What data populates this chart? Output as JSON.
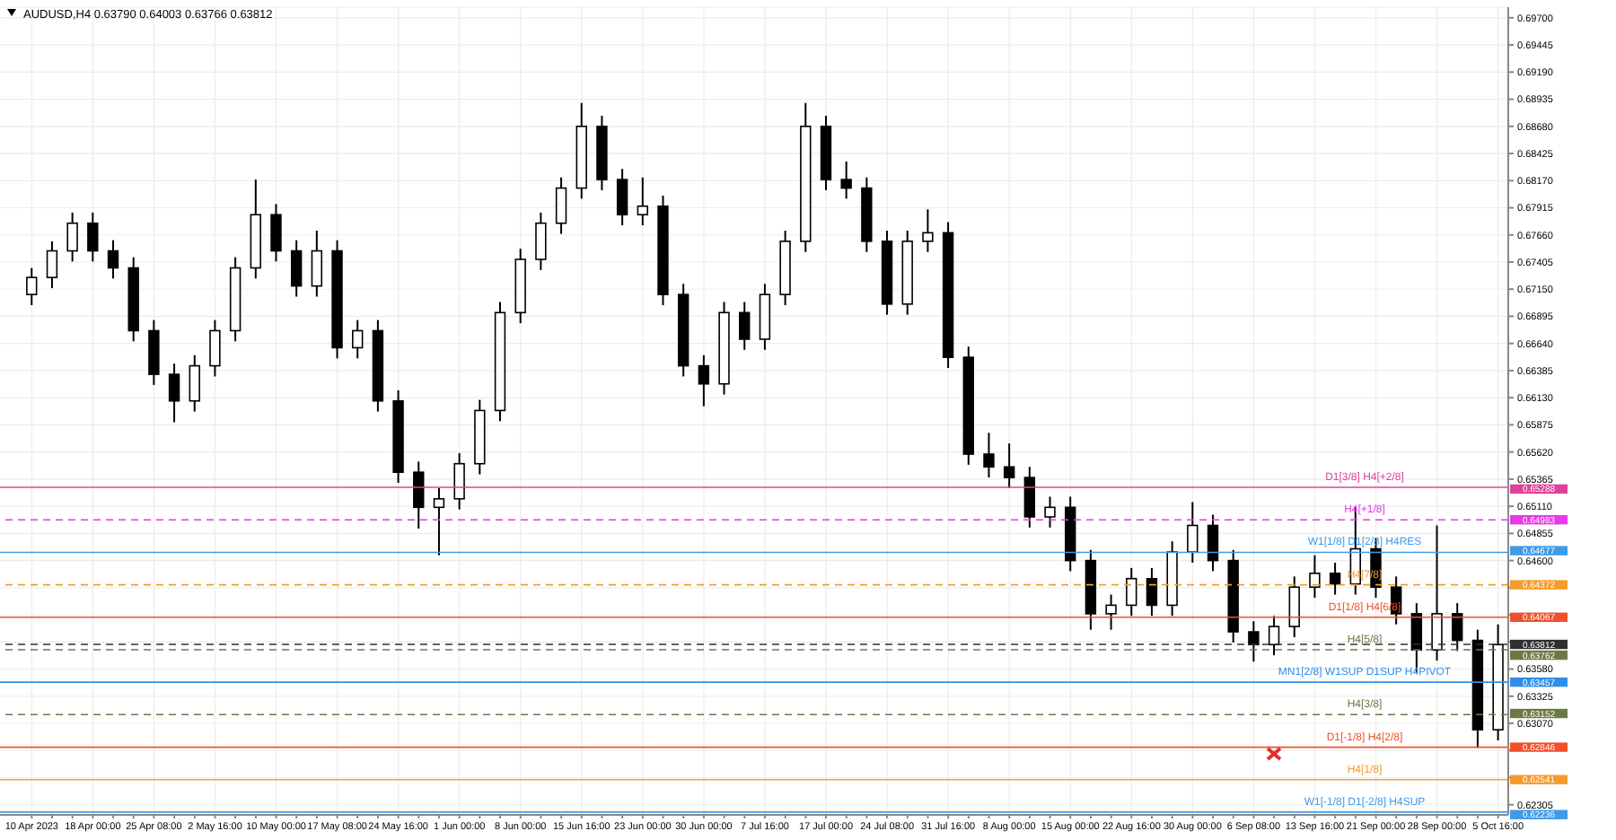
{
  "chart_data": {
    "type": "candlestick",
    "title": "AUDUSD,H4  0.63790 0.64003 0.63766 0.63812",
    "color": "#000000",
    "grid": true,
    "categories": [
      "10 Apr 2023",
      null,
      null,
      "18 Apr 00:00",
      null,
      null,
      "25 Apr 08:00",
      null,
      null,
      "2 May 16:00",
      null,
      null,
      "10 May 00:00",
      null,
      null,
      "17 May 08:00",
      null,
      null,
      "24 May 16:00",
      null,
      null,
      "1 Jun 00:00",
      null,
      null,
      "8 Jun 00:00",
      null,
      null,
      "15 Jun 16:00",
      null,
      null,
      "23 Jun 00:00",
      null,
      null,
      "30 Jun 00:00",
      null,
      null,
      "7 Jul 16:00",
      null,
      null,
      "17 Jul 00:00",
      null,
      null,
      "24 Jul 08:00",
      null,
      null,
      "31 Jul 16:00",
      null,
      null,
      "8 Aug 00:00",
      null,
      null,
      "15 Aug 00:00",
      null,
      null,
      "22 Aug 16:00",
      null,
      null,
      "30 Aug 00:00",
      null,
      null,
      "6 Sep 08:00",
      null,
      null,
      "13 Sep 16:00",
      null,
      null,
      "21 Sep 00:00",
      null,
      null,
      "28 Sep 00:00",
      null,
      null,
      "5 Oct 16:00"
    ],
    "ohlc": [
      [
        0.671,
        0.6735,
        0.67,
        0.6726
      ],
      [
        0.6726,
        0.676,
        0.6716,
        0.6751
      ],
      [
        0.6751,
        0.6787,
        0.6741,
        0.6777
      ],
      [
        0.6777,
        0.6787,
        0.6741,
        0.6751
      ],
      [
        0.6751,
        0.6761,
        0.6725,
        0.6735
      ],
      [
        0.6735,
        0.6745,
        0.6666,
        0.6676
      ],
      [
        0.6676,
        0.6686,
        0.6625,
        0.6635
      ],
      [
        0.6635,
        0.6645,
        0.659,
        0.661
      ],
      [
        0.661,
        0.6653,
        0.66,
        0.6643
      ],
      [
        0.6643,
        0.6686,
        0.6633,
        0.6676
      ],
      [
        0.6676,
        0.6745,
        0.6666,
        0.6735
      ],
      [
        0.6735,
        0.6818,
        0.6725,
        0.6785
      ],
      [
        0.6785,
        0.6795,
        0.6741,
        0.6751
      ],
      [
        0.6751,
        0.6761,
        0.6708,
        0.6718
      ],
      [
        0.6718,
        0.677,
        0.6708,
        0.6751
      ],
      [
        0.6751,
        0.6761,
        0.665,
        0.666
      ],
      [
        0.666,
        0.6686,
        0.665,
        0.6676
      ],
      [
        0.6676,
        0.6686,
        0.66,
        0.661
      ],
      [
        0.661,
        0.662,
        0.6533,
        0.6543
      ],
      [
        0.6543,
        0.6553,
        0.649,
        0.651
      ],
      [
        0.651,
        0.6528,
        0.6465,
        0.6518
      ],
      [
        0.6518,
        0.6561,
        0.6508,
        0.6551
      ],
      [
        0.6551,
        0.6611,
        0.6541,
        0.6601
      ],
      [
        0.6601,
        0.6703,
        0.6591,
        0.6693
      ],
      [
        0.6693,
        0.6753,
        0.6683,
        0.6743
      ],
      [
        0.6743,
        0.6787,
        0.6733,
        0.6777
      ],
      [
        0.6777,
        0.682,
        0.6767,
        0.681
      ],
      [
        0.681,
        0.689,
        0.68,
        0.6868
      ],
      [
        0.6868,
        0.6878,
        0.6808,
        0.6818
      ],
      [
        0.6818,
        0.6828,
        0.6775,
        0.6785
      ],
      [
        0.6785,
        0.682,
        0.6775,
        0.6793
      ],
      [
        0.6793,
        0.6803,
        0.67,
        0.671
      ],
      [
        0.671,
        0.672,
        0.6633,
        0.6643
      ],
      [
        0.6643,
        0.6653,
        0.6605,
        0.6626
      ],
      [
        0.6626,
        0.6703,
        0.6616,
        0.6693
      ],
      [
        0.6693,
        0.6703,
        0.6658,
        0.6668
      ],
      [
        0.6668,
        0.672,
        0.6658,
        0.671
      ],
      [
        0.671,
        0.677,
        0.67,
        0.676
      ],
      [
        0.676,
        0.689,
        0.675,
        0.6868
      ],
      [
        0.6868,
        0.6878,
        0.6808,
        0.6818
      ],
      [
        0.6818,
        0.6835,
        0.68,
        0.681
      ],
      [
        0.681,
        0.682,
        0.675,
        0.676
      ],
      [
        0.676,
        0.677,
        0.6691,
        0.6701
      ],
      [
        0.6701,
        0.677,
        0.6691,
        0.676
      ],
      [
        0.676,
        0.679,
        0.675,
        0.6768
      ],
      [
        0.6768,
        0.6778,
        0.6641,
        0.6651
      ],
      [
        0.6651,
        0.6661,
        0.655,
        0.656
      ],
      [
        0.656,
        0.658,
        0.6538,
        0.6548
      ],
      [
        0.6548,
        0.657,
        0.6528,
        0.6538
      ],
      [
        0.6538,
        0.6548,
        0.6491,
        0.6501
      ],
      [
        0.6501,
        0.652,
        0.6491,
        0.651
      ],
      [
        0.651,
        0.652,
        0.645,
        0.646
      ],
      [
        0.646,
        0.647,
        0.6395,
        0.641
      ],
      [
        0.641,
        0.6428,
        0.6395,
        0.6418
      ],
      [
        0.6418,
        0.6453,
        0.6408,
        0.6443
      ],
      [
        0.6443,
        0.6453,
        0.6408,
        0.6418
      ],
      [
        0.6418,
        0.6478,
        0.6408,
        0.6468
      ],
      [
        0.6468,
        0.6515,
        0.6458,
        0.6493
      ],
      [
        0.6493,
        0.6503,
        0.645,
        0.646
      ],
      [
        0.646,
        0.647,
        0.6383,
        0.6393
      ],
      [
        0.6393,
        0.6403,
        0.6365,
        0.6381
      ],
      [
        0.6381,
        0.6408,
        0.6371,
        0.6398
      ],
      [
        0.6398,
        0.6445,
        0.6388,
        0.6435
      ],
      [
        0.6435,
        0.6465,
        0.6425,
        0.6448
      ],
      [
        0.6448,
        0.6458,
        0.6428,
        0.6438
      ],
      [
        0.6438,
        0.651,
        0.6428,
        0.6471
      ],
      [
        0.6471,
        0.6481,
        0.6425,
        0.6435
      ],
      [
        0.6435,
        0.6445,
        0.64,
        0.641
      ],
      [
        0.641,
        0.642,
        0.6355,
        0.6376
      ],
      [
        0.6376,
        0.6493,
        0.6366,
        0.641
      ],
      [
        0.641,
        0.642,
        0.6375,
        0.6385
      ],
      [
        0.6385,
        0.6395,
        0.6284,
        0.6301
      ],
      [
        0.6301,
        0.64,
        0.6291,
        0.6381
      ]
    ],
    "ylim": [
      0.6221,
      0.698
    ],
    "yticks": [
      {
        "value": 0.697,
        "label": "0.69700"
      },
      {
        "value": 0.69445,
        "label": "0.69445"
      },
      {
        "value": 0.6919,
        "label": "0.69190"
      },
      {
        "value": 0.68935,
        "label": "0.68935"
      },
      {
        "value": 0.6868,
        "label": "0.68680"
      },
      {
        "value": 0.68425,
        "label": "0.68425"
      },
      {
        "value": 0.6817,
        "label": "0.68170"
      },
      {
        "value": 0.67915,
        "label": "0.67915"
      },
      {
        "value": 0.6766,
        "label": "0.67660"
      },
      {
        "value": 0.67405,
        "label": "0.67405"
      },
      {
        "value": 0.6715,
        "label": "0.67150"
      },
      {
        "value": 0.66895,
        "label": "0.66895"
      },
      {
        "value": 0.6664,
        "label": "0.66640"
      },
      {
        "value": 0.66385,
        "label": "0.66385"
      },
      {
        "value": 0.6613,
        "label": "0.66130"
      },
      {
        "value": 0.65875,
        "label": "0.65875"
      },
      {
        "value": 0.6562,
        "label": "0.65620"
      },
      {
        "value": 0.65365,
        "label": "0.65365"
      },
      {
        "value": 0.6511,
        "label": "0.65110"
      },
      {
        "value": 0.64855,
        "label": "0.64855"
      },
      {
        "value": 0.646,
        "label": "0.64600"
      },
      {
        "value": 0.64345,
        "label": null
      },
      {
        "value": 0.6409,
        "label": null
      },
      {
        "value": 0.63835,
        "label": null
      },
      {
        "value": 0.6358,
        "label": "0.63580"
      },
      {
        "value": 0.63325,
        "label": "0.63325"
      },
      {
        "value": 0.6307,
        "label": "0.63070"
      },
      {
        "value": 0.62815,
        "label": null
      },
      {
        "value": 0.6256,
        "label": null
      },
      {
        "value": 0.62305,
        "label": "0.62305"
      }
    ],
    "ref_lines": [
      {
        "axis": "y",
        "value": 0.65288,
        "label": "0.65288",
        "color": "#e0409a",
        "line_style": "solid"
      },
      {
        "axis": "y",
        "value": 0.64983,
        "label": "0.64983",
        "color": "#e838e8",
        "line_style": "dashed"
      },
      {
        "axis": "y",
        "value": 0.64677,
        "label": "0.64677",
        "color": "#3d9be9",
        "line_style": "solid"
      },
      {
        "axis": "y",
        "value": 0.64372,
        "label": "0.64372",
        "color": "#f59b2c",
        "line_style": "dashed"
      },
      {
        "axis": "y",
        "value": 0.64067,
        "label": "0.64067",
        "color": "#f0502a",
        "line_style": "solid"
      },
      {
        "axis": "y",
        "value": 0.63812,
        "label": "0.63812",
        "color": "#303030",
        "line_style": "dashed"
      },
      {
        "axis": "y",
        "value": 0.63762,
        "label": "0.63762",
        "color": "#6b7a45",
        "line_style": "dashed"
      },
      {
        "axis": "y",
        "value": 0.63457,
        "label": "0.63457",
        "color": "#2f8fe8",
        "line_style": "solid"
      },
      {
        "axis": "y",
        "value": 0.63152,
        "label": "0.63152",
        "color": "#6b7a45",
        "line_style": "dashed"
      },
      {
        "axis": "y",
        "value": 0.62846,
        "label": "0.62846",
        "color": "#f0502a",
        "line_style": "solid"
      },
      {
        "axis": "y",
        "value": 0.62541,
        "label": "0.62541",
        "color": "#f59b2c",
        "line_style": "solid"
      },
      {
        "axis": "y",
        "value": 0.62236,
        "label": "0.62236",
        "color": "#3d9be9",
        "line_style": "solid"
      }
    ],
    "annotations": [
      {
        "text": "D1[3/8] H4[+2/8]",
        "y": 0.65288
      },
      {
        "text": "H4[+1/8]",
        "y": 0.64983
      },
      {
        "text": "W1[1/8] D1[2/8] H4RES",
        "y": 0.64677
      },
      {
        "text": "H4[7/8]",
        "y": 0.64372
      },
      {
        "text": "D1[1/8] H4[6/8]",
        "y": 0.64067
      },
      {
        "text": "H4[5/8]",
        "y": 0.63762
      },
      {
        "text": "MN1[2/8] W1SUP D1SUP H4PIVOT",
        "y": 0.63457
      },
      {
        "text": "H4[3/8]",
        "y": 0.63152
      },
      {
        "text": "D1[-1/8] H4[2/8]",
        "y": 0.62846
      },
      {
        "text": "H4[1/8]",
        "y": 0.62541
      },
      {
        "text": "W1[-1/8] D1[-2/8] H4SUP",
        "y": 0.62236
      }
    ]
  }
}
